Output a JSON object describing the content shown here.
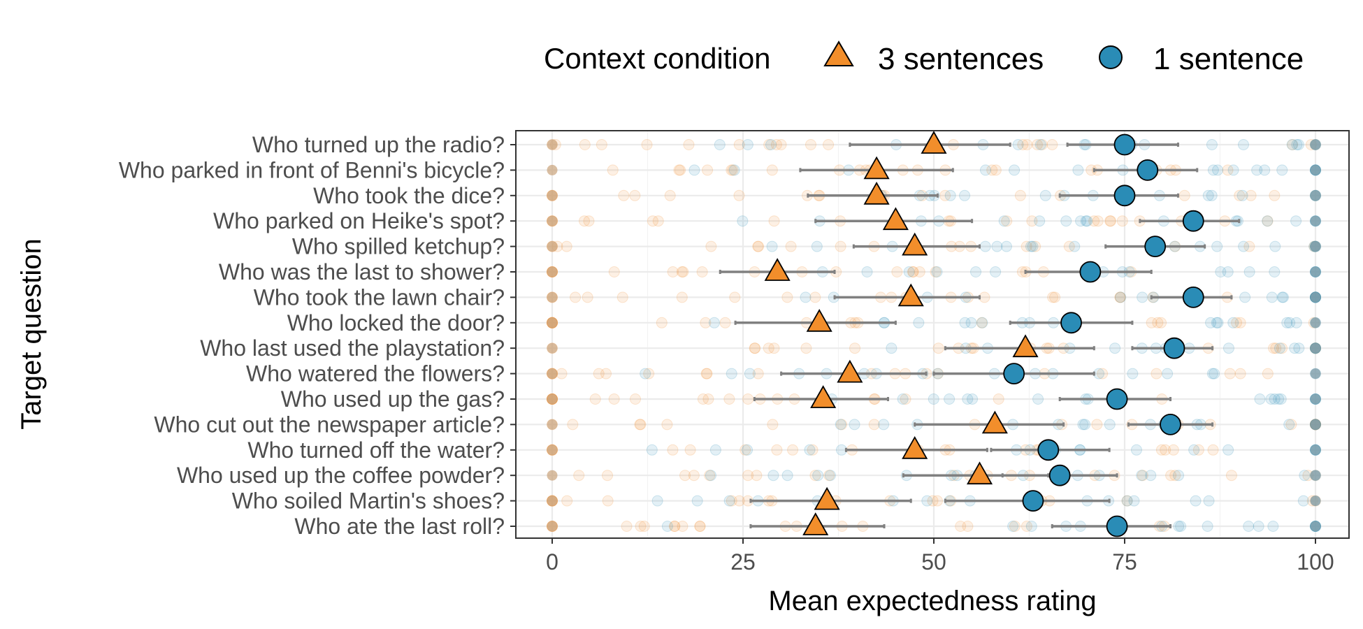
{
  "chart_data": {
    "type": "scatter",
    "xlabel": "Mean expectedness rating",
    "ylabel": "Target question",
    "xlim": [
      0,
      100
    ],
    "x_ticks": [
      0,
      25,
      50,
      75,
      100
    ],
    "x_tick_labels": [
      "0",
      "25",
      "50",
      "75",
      "100"
    ],
    "grid": true,
    "legend": {
      "title": "Context condition",
      "position": "top",
      "entries": [
        {
          "label": "3 sentences",
          "shape": "triangle",
          "color": "#F28E2B"
        },
        {
          "label": "1 sentence",
          "shape": "circle",
          "color": "#2A8CB6"
        }
      ]
    },
    "categories": [
      "Who turned up the radio?",
      "Who parked in front of Benni's bicycle?",
      "Who took the dice?",
      "Who parked on Heike's spot?",
      "Who spilled ketchup?",
      "Who was the last to shower?",
      "Who took the lawn chair?",
      "Who locked the door?",
      "Who last used the playstation?",
      "Who watered the flowers?",
      "Who used up the gas?",
      "Who cut out the newspaper article?",
      "Who turned off the water?",
      "Who used up the coffee powder?",
      "Who soiled Martin's shoes?",
      "Who ate the last roll?"
    ],
    "series": [
      {
        "name": "3 sentences",
        "color": "#F28E2B",
        "shape": "triangle",
        "means": [
          50,
          42.5,
          42.5,
          45,
          47.5,
          29.5,
          47,
          35,
          62,
          39,
          35.5,
          58,
          47.5,
          56,
          36,
          34.5
        ],
        "ci_low": [
          39,
          32.5,
          33.5,
          34.5,
          39.5,
          22,
          37,
          24,
          51.5,
          30,
          26.5,
          47.5,
          38.5,
          46,
          26,
          26
        ],
        "ci_high": [
          60,
          52.5,
          50.5,
          55,
          56,
          37,
          56,
          45,
          71,
          49,
          44,
          67,
          57,
          65,
          47,
          43.5
        ]
      },
      {
        "name": "1 sentence",
        "color": "#2A8CB6",
        "shape": "circle",
        "means": [
          75,
          78,
          75,
          84,
          79,
          70.5,
          84,
          68,
          81.5,
          60.5,
          74,
          81,
          65,
          66.5,
          63,
          74
        ],
        "ci_low": [
          67.5,
          71,
          66.5,
          77,
          72.5,
          62,
          78.5,
          60,
          76,
          50,
          66.5,
          75.5,
          57.5,
          59,
          51.5,
          65.5
        ],
        "ci_high": [
          82,
          84.5,
          82,
          90,
          85.5,
          78.5,
          89,
          76,
          86.5,
          71,
          81,
          86.5,
          73,
          74,
          73,
          81
        ]
      }
    ]
  }
}
